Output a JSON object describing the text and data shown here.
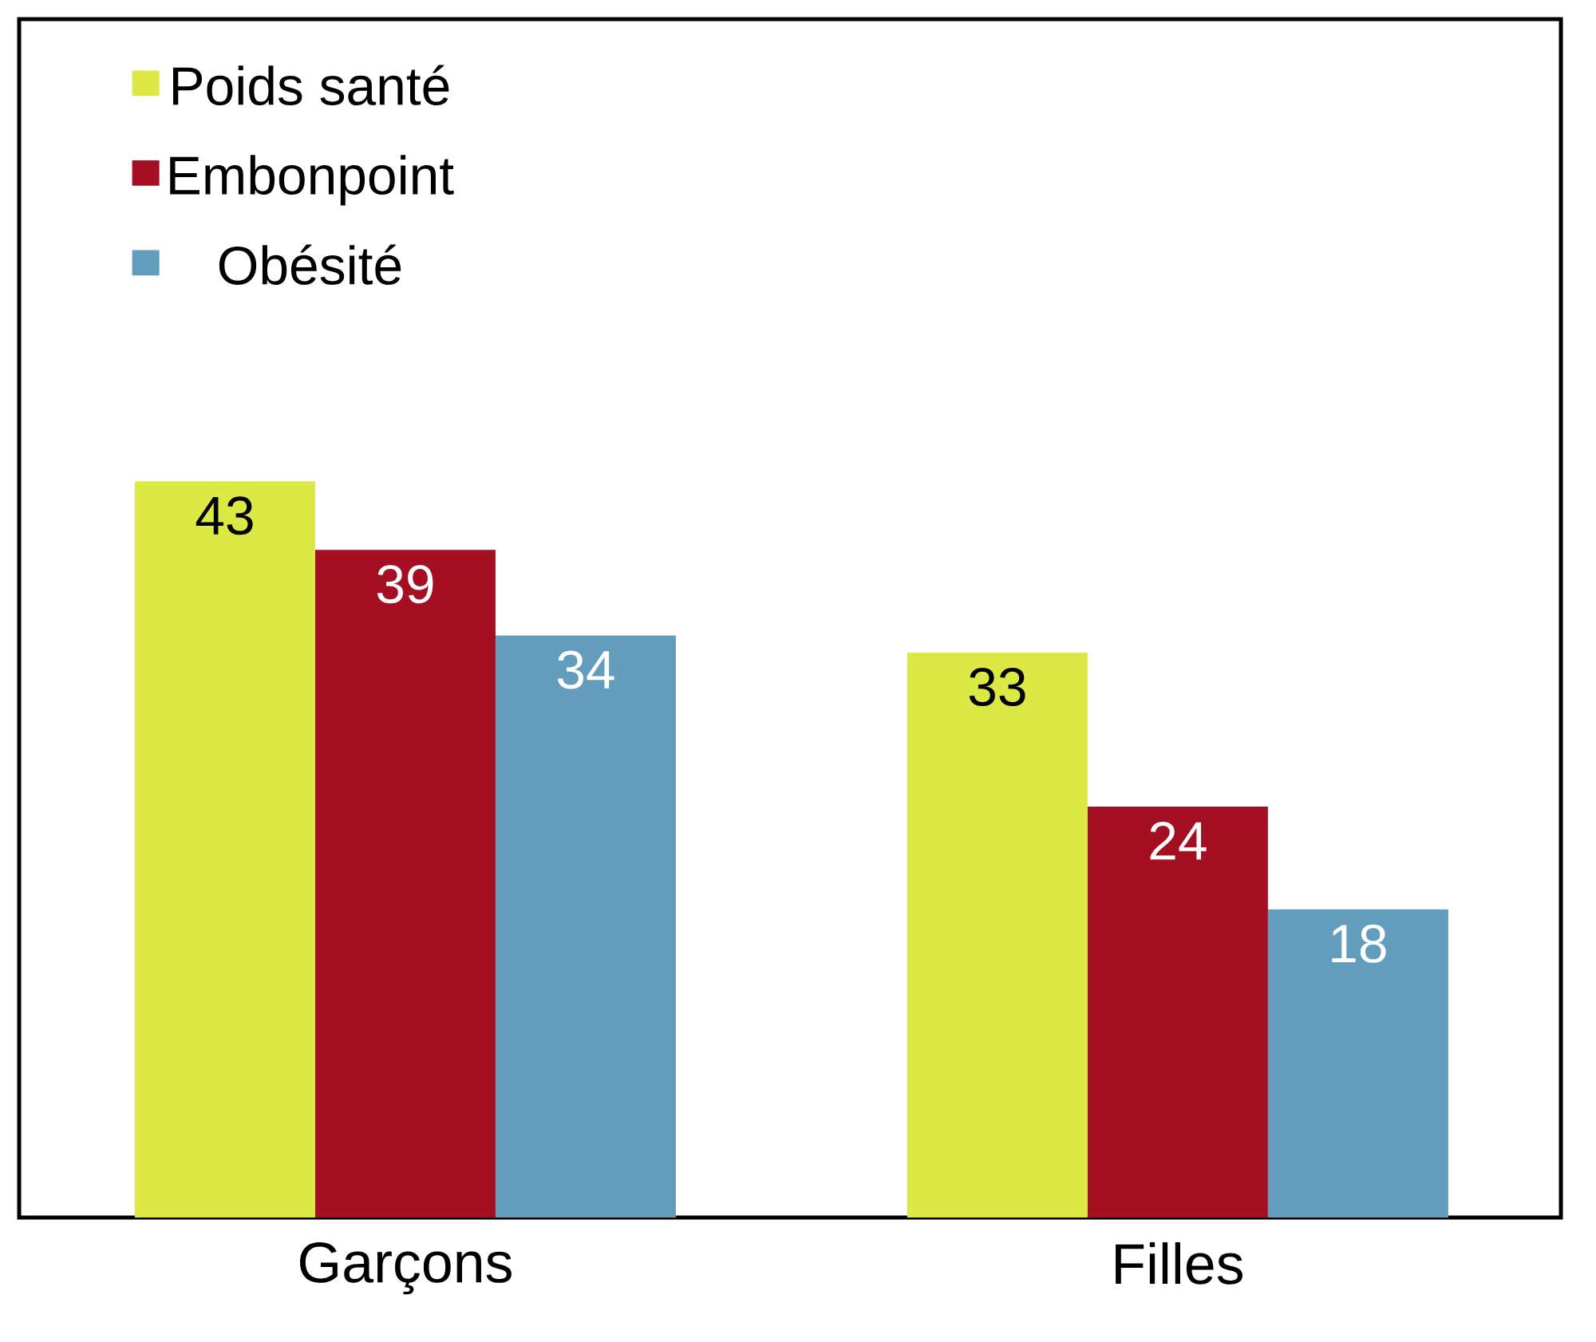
{
  "chart_data": {
    "type": "bar",
    "categories": [
      "Garçons",
      "Filles"
    ],
    "series": [
      {
        "name": "Poids santé",
        "color": "#dce843",
        "values": [
          43,
          33
        ]
      },
      {
        "name": "Embonpoint",
        "color": "#a50f22",
        "values": [
          39,
          24
        ]
      },
      {
        "name": "Obésité",
        "color": "#639dbd",
        "values": [
          34,
          18
        ]
      }
    ],
    "ylim": [
      0,
      70
    ],
    "data_labels": true,
    "legend": "top left",
    "tick_labels": "x",
    "grid": false
  }
}
